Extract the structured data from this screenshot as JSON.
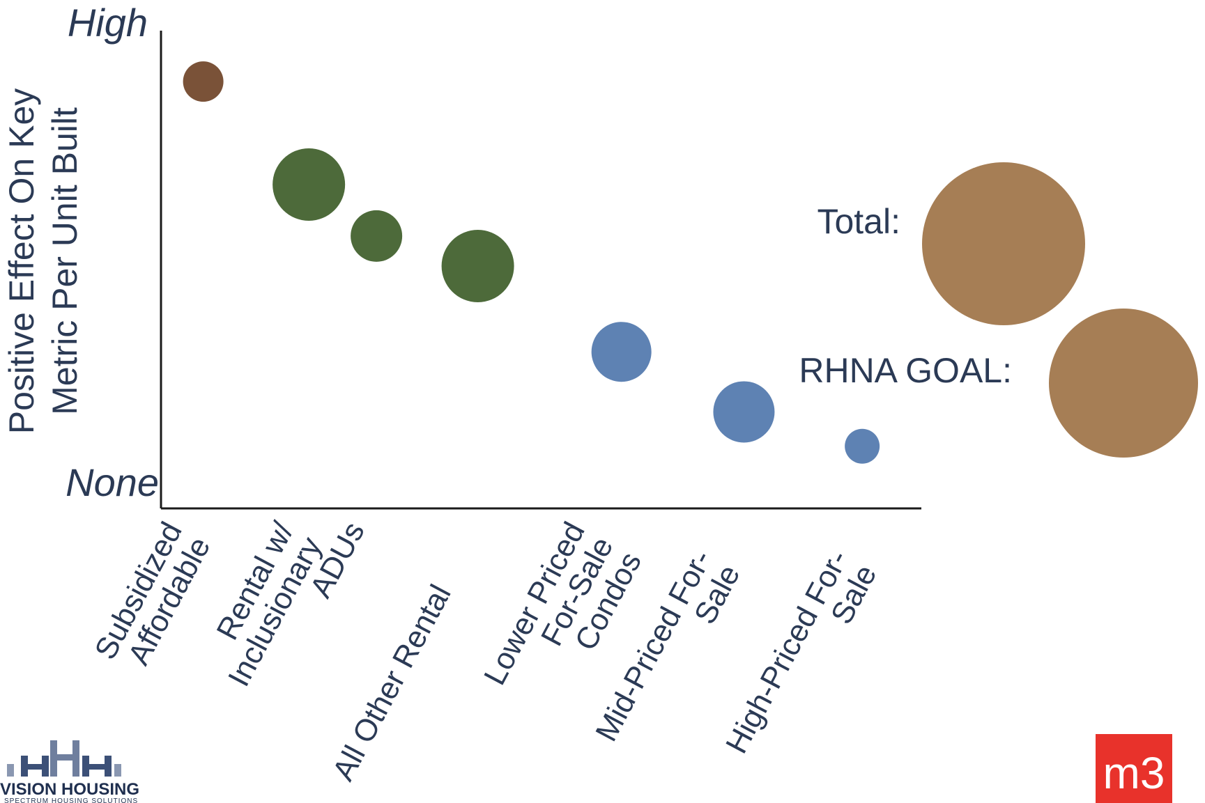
{
  "chart_data": {
    "type": "bubble",
    "ylabel_lines": [
      "Positive Effect On Key",
      "Metric Per Unit Built"
    ],
    "y_high_label": "High",
    "y_low_label": "None",
    "ylim": [
      0,
      100
    ],
    "categories": [
      {
        "label_lines": [
          "Subsidized",
          "Affordable"
        ],
        "x_index": 0,
        "label_slot": 0
      },
      {
        "label_lines": [
          "Rental w/",
          "Inclusionary"
        ],
        "x_index": 1,
        "label_slot": 1
      },
      {
        "label_lines": [
          "ADUs"
        ],
        "x_index": 2,
        "label_slot": 2
      },
      {
        "label_lines": [
          "All Other Rental"
        ],
        "x_index": 3,
        "label_slot": 3
      },
      {
        "label_lines": [
          "Lower Priced",
          "For-Sale",
          "Condos"
        ],
        "x_index": 4,
        "label_slot": 4
      },
      {
        "label_lines": [
          "Mid-Priced For-",
          "Sale"
        ],
        "x_index": 5,
        "label_slot": 5
      },
      {
        "label_lines": [
          "High-Priced For-",
          "Sale"
        ],
        "x_index": 6,
        "label_slot": 6
      }
    ],
    "points": [
      {
        "category": "Subsidized Affordable",
        "x": 0.5,
        "y": 93,
        "size": 29,
        "color": "#7a5238"
      },
      {
        "category": "Rental w/ Inclusionary",
        "x": 1.75,
        "y": 69,
        "size": 52,
        "color": "#4d6a3a"
      },
      {
        "category": "ADUs",
        "x": 2.55,
        "y": 57,
        "size": 37,
        "color": "#4d6a3a"
      },
      {
        "category": "All Other Rental",
        "x": 3.75,
        "y": 50,
        "size": 52,
        "color": "#4d6a3a"
      },
      {
        "category": "Lower Priced For-Sale Condos",
        "x": 5.45,
        "y": 30,
        "size": 43,
        "color": "#5e82b3"
      },
      {
        "category": "Mid-Priced For-Sale",
        "x": 6.9,
        "y": 16,
        "size": 44,
        "color": "#5e82b3"
      },
      {
        "category": "High-Priced For-Sale",
        "x": 8.3,
        "y": 8,
        "size": 25,
        "color": "#5e82b3"
      }
    ],
    "summary": [
      {
        "label": "Total:",
        "size": 117,
        "color": "#a67e55"
      },
      {
        "label": "RHNA GOAL:",
        "size": 107,
        "color": "#a67e55"
      }
    ],
    "legend": "none",
    "grid": false
  },
  "logos": {
    "left_text": "VISION HOUSING",
    "left_subtext": "SPECTRUM HOUSING SOLUTIONS",
    "right_text": "m3",
    "right_color": "#e8322b"
  }
}
